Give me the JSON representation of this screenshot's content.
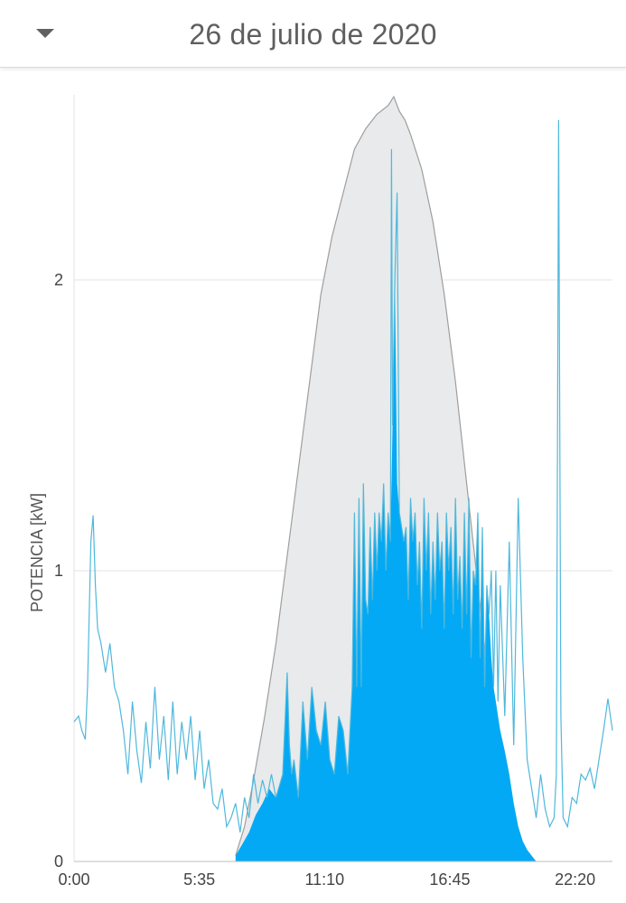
{
  "header": {
    "title": "26 de julio de 2020",
    "dropdown_icon": "caret-down-icon"
  },
  "chart_data": {
    "type": "area",
    "title": "",
    "xlabel": "",
    "ylabel": "POTENCIA [kW]",
    "xlim": [
      0,
      24
    ],
    "ylim": [
      0,
      2.6
    ],
    "grid": true,
    "x_ticks": [
      "0:00",
      "5:35",
      "11:10",
      "16:45",
      "22:20"
    ],
    "y_ticks": [
      "0",
      "1",
      "2"
    ],
    "colors": {
      "production": "#e9eaeb",
      "production_line": "#9e9e9e",
      "self_consumption": "#03a9f4",
      "consumption_line": "#4fb8dc"
    },
    "series": [
      {
        "key": "production",
        "hours": [
          7.2,
          7.6,
          8.0,
          8.5,
          9.0,
          9.5,
          10.0,
          10.5,
          11.0,
          11.5,
          12.0,
          12.5,
          13.0,
          13.5,
          14.0,
          14.25,
          14.5,
          14.75,
          15.0,
          15.5,
          16.0,
          16.5,
          17.0,
          17.5,
          18.0,
          18.5,
          19.0,
          19.5,
          20.0,
          20.3,
          20.6
        ],
        "values": [
          0.02,
          0.12,
          0.28,
          0.5,
          0.75,
          1.05,
          1.35,
          1.65,
          1.95,
          2.15,
          2.3,
          2.45,
          2.52,
          2.57,
          2.6,
          2.63,
          2.58,
          2.55,
          2.5,
          2.38,
          2.2,
          1.95,
          1.65,
          1.3,
          0.95,
          0.6,
          0.3,
          0.1,
          0.02,
          0.01,
          0.0
        ]
      },
      {
        "key": "self_consumption",
        "hours": [
          7.2,
          7.5,
          7.8,
          8.1,
          8.4,
          8.7,
          9.0,
          9.3,
          9.5,
          9.6,
          9.7,
          9.8,
          10.0,
          10.2,
          10.4,
          10.6,
          10.8,
          11.0,
          11.2,
          11.4,
          11.6,
          11.8,
          12.0,
          12.2,
          12.4,
          12.5,
          12.6,
          12.7,
          12.8,
          12.9,
          13.0,
          13.1,
          13.2,
          13.3,
          13.4,
          13.5,
          13.6,
          13.7,
          13.8,
          13.9,
          14.0,
          14.1,
          14.2,
          14.3,
          14.4,
          14.5,
          14.6,
          14.7,
          14.8,
          14.9,
          15.0,
          15.1,
          15.2,
          15.3,
          15.4,
          15.5,
          15.6,
          15.7,
          15.8,
          15.9,
          16.0,
          16.1,
          16.2,
          16.3,
          16.4,
          16.5,
          16.6,
          16.7,
          16.8,
          16.9,
          17.0,
          17.1,
          17.2,
          17.3,
          17.4,
          17.5,
          17.6,
          17.7,
          17.8,
          17.9,
          18.0,
          18.1,
          18.2,
          18.3,
          18.4,
          18.5,
          18.6,
          18.7,
          18.8,
          18.9,
          19.0,
          19.2,
          19.4,
          19.6,
          19.8,
          20.0,
          20.2,
          20.4,
          20.6
        ],
        "values": [
          0.02,
          0.06,
          0.1,
          0.16,
          0.2,
          0.25,
          0.22,
          0.3,
          0.65,
          0.4,
          0.3,
          0.35,
          0.22,
          0.55,
          0.35,
          0.6,
          0.45,
          0.4,
          0.55,
          0.35,
          0.3,
          0.5,
          0.45,
          0.3,
          0.6,
          1.2,
          0.6,
          1.25,
          0.6,
          1.3,
          0.9,
          0.85,
          1.15,
          0.9,
          1.2,
          1.0,
          1.2,
          1.1,
          1.3,
          1.0,
          1.2,
          1.1,
          1.5,
          2.0,
          1.3,
          1.2,
          1.15,
          1.1,
          1.15,
          0.9,
          1.25,
          1.1,
          1.2,
          0.95,
          1.1,
          0.8,
          1.25,
          1.0,
          1.2,
          0.85,
          1.1,
          0.9,
          1.2,
          1.0,
          1.1,
          0.8,
          1.2,
          1.0,
          1.15,
          0.85,
          1.25,
          0.9,
          1.05,
          0.8,
          1.2,
          0.85,
          1.25,
          0.7,
          1.0,
          0.95,
          1.2,
          0.7,
          1.15,
          0.6,
          0.95,
          0.85,
          0.7,
          0.6,
          0.55,
          0.5,
          0.45,
          0.38,
          0.3,
          0.2,
          0.12,
          0.07,
          0.04,
          0.02,
          0.0
        ]
      },
      {
        "key": "consumption",
        "hours": [
          0.0,
          0.2,
          0.35,
          0.5,
          0.6,
          0.75,
          0.85,
          0.95,
          1.05,
          1.2,
          1.4,
          1.6,
          1.8,
          2.0,
          2.2,
          2.4,
          2.6,
          2.8,
          3.0,
          3.2,
          3.4,
          3.6,
          3.8,
          4.0,
          4.2,
          4.4,
          4.6,
          4.8,
          5.0,
          5.2,
          5.4,
          5.6,
          5.8,
          6.0,
          6.2,
          6.4,
          6.6,
          6.8,
          7.0,
          7.2,
          7.4,
          7.6,
          7.8,
          8.0,
          8.2,
          8.4,
          8.6,
          8.8,
          9.0,
          9.3,
          9.5,
          9.6,
          9.7,
          9.8,
          10.0,
          10.2,
          10.4,
          10.6,
          10.8,
          11.0,
          11.2,
          11.4,
          11.6,
          11.8,
          12.0,
          12.2,
          12.4,
          12.5,
          12.6,
          12.7,
          12.8,
          12.9,
          13.0,
          13.1,
          13.2,
          13.3,
          13.4,
          13.5,
          13.6,
          13.7,
          13.8,
          13.9,
          14.0,
          14.1,
          14.15,
          14.2,
          14.3,
          14.4,
          14.5,
          14.6,
          14.7,
          14.8,
          14.9,
          15.0,
          15.1,
          15.2,
          15.3,
          15.4,
          15.5,
          15.6,
          15.7,
          15.8,
          15.9,
          16.0,
          16.1,
          16.2,
          16.3,
          16.4,
          16.5,
          16.6,
          16.7,
          16.8,
          16.9,
          17.0,
          17.1,
          17.2,
          17.3,
          17.4,
          17.5,
          17.6,
          17.7,
          17.8,
          17.9,
          18.0,
          18.1,
          18.2,
          18.3,
          18.4,
          18.5,
          18.6,
          18.7,
          18.8,
          18.9,
          19.0,
          19.2,
          19.4,
          19.6,
          19.8,
          20.0,
          20.2,
          20.4,
          20.6,
          20.8,
          21.0,
          21.2,
          21.4,
          21.5,
          21.6,
          21.7,
          21.8,
          22.0,
          22.2,
          22.4,
          22.6,
          22.8,
          23.0,
          23.2,
          23.4,
          23.6,
          23.8,
          24.0
        ],
        "values": [
          0.48,
          0.5,
          0.45,
          0.42,
          0.6,
          1.1,
          1.19,
          0.95,
          0.8,
          0.75,
          0.65,
          0.75,
          0.6,
          0.55,
          0.45,
          0.3,
          0.55,
          0.38,
          0.27,
          0.48,
          0.32,
          0.6,
          0.35,
          0.5,
          0.28,
          0.55,
          0.3,
          0.48,
          0.35,
          0.5,
          0.28,
          0.45,
          0.25,
          0.35,
          0.2,
          0.18,
          0.25,
          0.12,
          0.15,
          0.2,
          0.1,
          0.22,
          0.15,
          0.3,
          0.2,
          0.28,
          0.22,
          0.3,
          0.22,
          0.3,
          0.65,
          0.4,
          0.3,
          0.35,
          0.22,
          0.55,
          0.35,
          0.6,
          0.45,
          0.4,
          0.55,
          0.35,
          0.3,
          0.5,
          0.45,
          0.3,
          0.6,
          1.2,
          0.6,
          1.25,
          0.6,
          1.3,
          0.9,
          0.85,
          1.15,
          0.9,
          1.2,
          1.0,
          1.2,
          1.1,
          1.3,
          1.0,
          1.2,
          1.1,
          2.45,
          1.5,
          2.0,
          2.3,
          1.2,
          1.15,
          1.1,
          1.15,
          0.9,
          1.25,
          1.1,
          1.2,
          0.95,
          1.1,
          0.8,
          1.25,
          1.0,
          1.2,
          0.85,
          1.1,
          0.9,
          1.2,
          1.0,
          1.1,
          0.8,
          1.2,
          1.0,
          1.15,
          0.85,
          1.25,
          0.9,
          1.05,
          0.8,
          1.2,
          0.85,
          1.25,
          0.7,
          1.0,
          0.95,
          1.2,
          0.7,
          1.15,
          0.6,
          0.95,
          0.85,
          1.0,
          0.6,
          1.0,
          0.55,
          0.95,
          0.5,
          1.1,
          0.4,
          1.25,
          0.7,
          0.35,
          0.25,
          0.15,
          0.3,
          0.18,
          0.12,
          0.15,
          0.3,
          2.55,
          0.5,
          0.15,
          0.12,
          0.22,
          0.2,
          0.3,
          0.28,
          0.32,
          0.25,
          0.35,
          0.45,
          0.56,
          0.45
        ]
      }
    ]
  }
}
